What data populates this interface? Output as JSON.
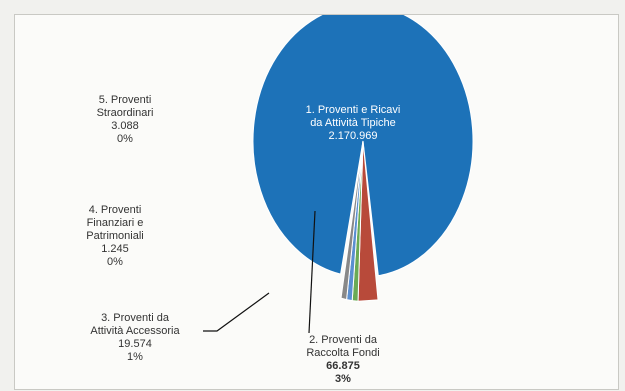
{
  "chart_data": {
    "type": "pie",
    "colors": [
      "#1d72b8",
      "#b84a3a",
      "#6aaa55",
      "#5a8fd0",
      "#888888"
    ],
    "slices": [
      {
        "label_lines": [
          "1. Proventi e Ricavi",
          "da Attività Tipiche"
        ],
        "value_text": "2.170.969",
        "percent_text": "",
        "value": 2170969
      },
      {
        "label_lines": [
          "2. Proventi da",
          "Raccolta Fondi"
        ],
        "value_text": "66.875",
        "percent_text": "3%",
        "value": 66875
      },
      {
        "label_lines": [
          "3. Proventi da",
          "Attività Accessoria"
        ],
        "value_text": "19.574",
        "percent_text": "1%",
        "value": 19574
      },
      {
        "label_lines": [
          "4. Proventi",
          "Finanziari e",
          "Patrimoniali"
        ],
        "value_text": "1.245",
        "percent_text": "0%",
        "value": 1245
      },
      {
        "label_lines": [
          "5. Proventi",
          "Straordinari"
        ],
        "value_text": "3.088",
        "percent_text": "0%",
        "value": 3088
      }
    ]
  }
}
